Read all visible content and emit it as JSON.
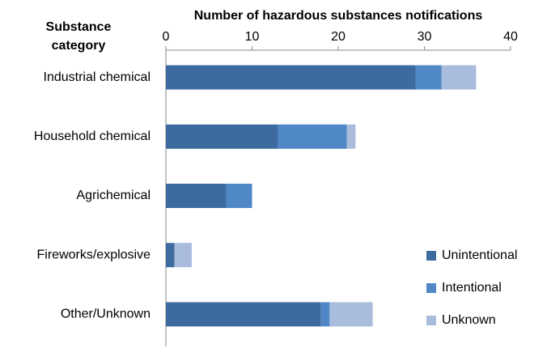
{
  "chart_data": {
    "type": "stacked-barh",
    "title": "Number of hazardous substances notifications",
    "y_label": "Substance category",
    "categories": [
      "Industrial chemical",
      "Household chemical",
      "Agrichemical",
      "Fireworks/explosive",
      "Other/Unknown"
    ],
    "series": [
      {
        "name": "Unintentional",
        "color": "#3e6b9f",
        "values": [
          29,
          13,
          7,
          1,
          18
        ]
      },
      {
        "name": "Intentional",
        "color": "#5088c7",
        "values": [
          3,
          8,
          3,
          0,
          1
        ]
      },
      {
        "name": "Unknown",
        "color": "#a9bcdc",
        "values": [
          4,
          1,
          0,
          2,
          5
        ]
      }
    ],
    "xlim": [
      0,
      40
    ],
    "xticks": [
      0,
      10,
      20,
      30,
      40
    ],
    "legend": "right"
  }
}
